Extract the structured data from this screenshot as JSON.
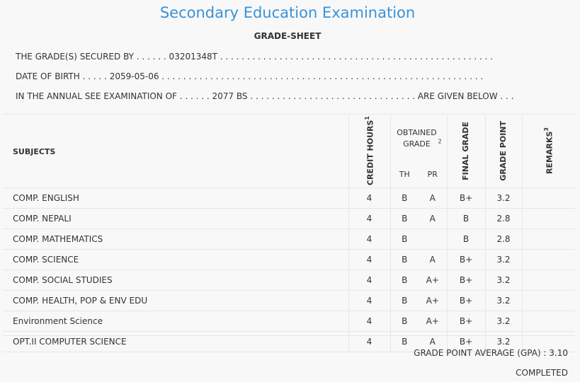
{
  "header": {
    "title": "Secondary Education Examination",
    "subtitle": "GRADE-SHEET"
  },
  "info": {
    "line1": "THE GRADE(S) SECURED BY . . . . . . 03201348T . . . . . . . . . . . . . . . . . . . . . . . . . . . . . . . . . . . . . . . . . . . . . . . . . . .",
    "line2": "DATE OF BIRTH . . . . . 2059-05-06 . . . . . . . . . . . . . . . . . . . . . . . . . . . . . . . . . . . . . . . . . . . . . . . . . . . . . . . . . . . .",
    "line3": "IN THE ANNUAL SEE EXAMINATION OF . . . . . . 2077 BS . . . . . . . . . . . . . . . . . . . . . . . . . . . . . . . ARE GIVEN BELOW . . ."
  },
  "table": {
    "col_subjects": "SUBJECTS",
    "col_credit": "CREDIT HOURS",
    "col_credit_sup": "1",
    "col_obtained": "OBTAINED GRADE",
    "col_obtained_sup": "2",
    "col_th": "TH",
    "col_pr": "PR",
    "col_final": "FINAL GRADE",
    "col_point": "GRADE POINT",
    "col_remarks": "REMARKS",
    "col_remarks_sup": "3",
    "rows": [
      {
        "subject": "COMP. ENGLISH",
        "credit": "4",
        "th": "B",
        "pr": "A",
        "final": "B+",
        "point": "3.2",
        "remarks": ""
      },
      {
        "subject": "COMP. NEPALI",
        "credit": "4",
        "th": "B",
        "pr": "A",
        "final": "B",
        "point": "2.8",
        "remarks": ""
      },
      {
        "subject": "COMP. MATHEMATICS",
        "credit": "4",
        "th": "B",
        "pr": "",
        "final": "B",
        "point": "2.8",
        "remarks": ""
      },
      {
        "subject": "COMP. SCIENCE",
        "credit": "4",
        "th": "B",
        "pr": "A",
        "final": "B+",
        "point": "3.2",
        "remarks": ""
      },
      {
        "subject": "COMP. SOCIAL STUDIES",
        "credit": "4",
        "th": "B",
        "pr": "A+",
        "final": "B+",
        "point": "3.2",
        "remarks": ""
      },
      {
        "subject": "COMP. HEALTH, POP & ENV EDU",
        "credit": "4",
        "th": "B",
        "pr": "A+",
        "final": "B+",
        "point": "3.2",
        "remarks": ""
      },
      {
        "subject": "Environment Science",
        "credit": "4",
        "th": "B",
        "pr": "A+",
        "final": "B+",
        "point": "3.2",
        "remarks": ""
      },
      {
        "subject": "OPT.II COMPUTER SCIENCE",
        "credit": "4",
        "th": "B",
        "pr": "A",
        "final": "B+",
        "point": "3.2",
        "remarks": ""
      }
    ]
  },
  "footer": {
    "gpa": "GRADE POINT AVERAGE (GPA) : 3.10",
    "status": "COMPLETED"
  }
}
